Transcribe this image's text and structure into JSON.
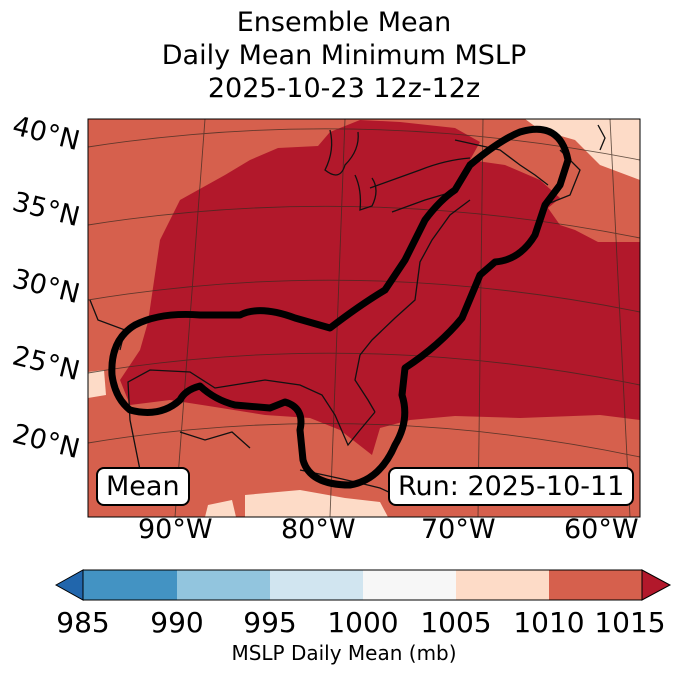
{
  "title": {
    "line1": "Ensemble Mean",
    "line2": "Daily Mean Minimum MSLP",
    "line3": "2025-10-23 12z-12z"
  },
  "map": {
    "lat_labels": [
      "40°N",
      "35°N",
      "30°N",
      "25°N",
      "20°N"
    ],
    "lon_labels": [
      "90°W",
      "80°W",
      "70°W",
      "60°W"
    ],
    "mean_label": "Mean",
    "run_label": "Run: 2025-10-11",
    "colors": {
      "ocean_dark": "#b2182b",
      "ocean_mid": "#d6604d",
      "light": "#fddbc7"
    }
  },
  "colorbar": {
    "ticks": [
      "985",
      "990",
      "995",
      "1000",
      "1005",
      "1010",
      "1015"
    ],
    "title": "MSLP Daily Mean (mb)",
    "colors": [
      "#2166ac",
      "#4393c3",
      "#92c5de",
      "#d1e5f0",
      "#f7f7f7",
      "#fddbc7",
      "#d6604d",
      "#b2182b"
    ]
  }
}
